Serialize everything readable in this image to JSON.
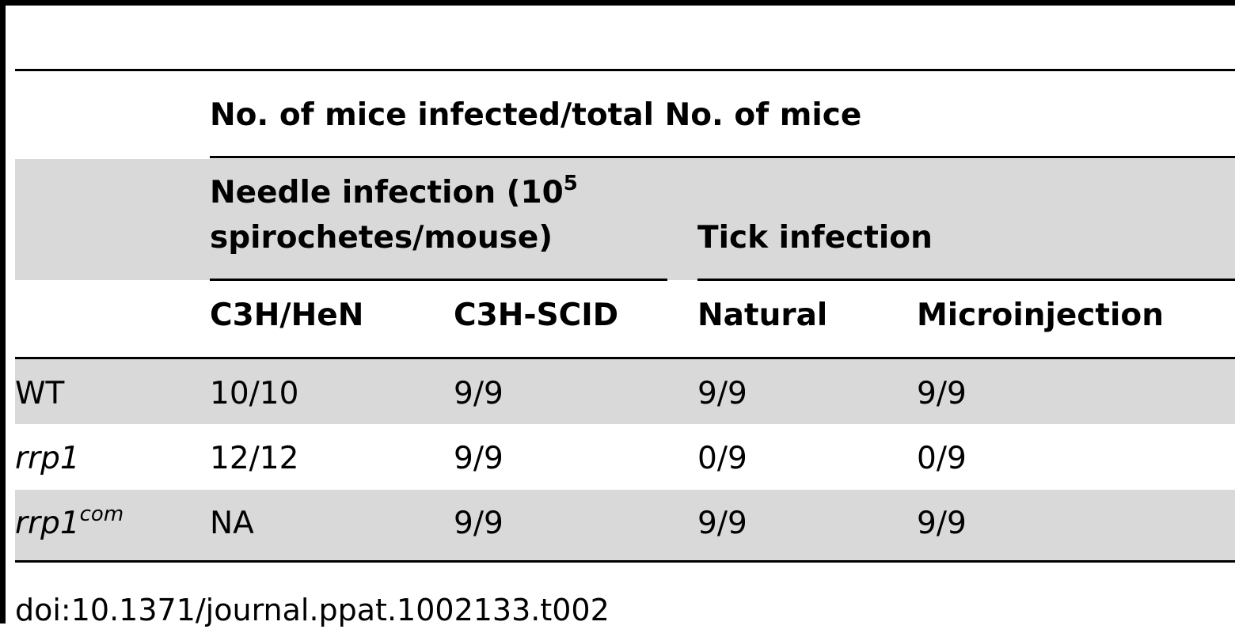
{
  "table": {
    "spanner": "No. of mice infected/total No. of mice",
    "groups": {
      "needle_line1": "Needle infection (10",
      "needle_sup": "5",
      "needle_line2": "spirochetes/mouse)",
      "tick": "Tick infection"
    },
    "columns": [
      "C3H/HeN",
      "C3H-SCID",
      "Natural",
      "Microinjection"
    ],
    "rows": [
      {
        "strain": "WT",
        "strain_sup": "",
        "values": [
          "10/10",
          "9/9",
          "9/9",
          "9/9"
        ]
      },
      {
        "strain": "rrp1",
        "strain_sup": "",
        "values": [
          "12/12",
          "9/9",
          "0/9",
          "0/9"
        ]
      },
      {
        "strain": "rrp1",
        "strain_sup": "com",
        "values": [
          "NA",
          "9/9",
          "9/9",
          "9/9"
        ]
      }
    ]
  },
  "doi": "doi:10.1371/journal.ppat.1002133.t002",
  "colors": {
    "band": "#d9d9d9",
    "rule": "#000000"
  }
}
